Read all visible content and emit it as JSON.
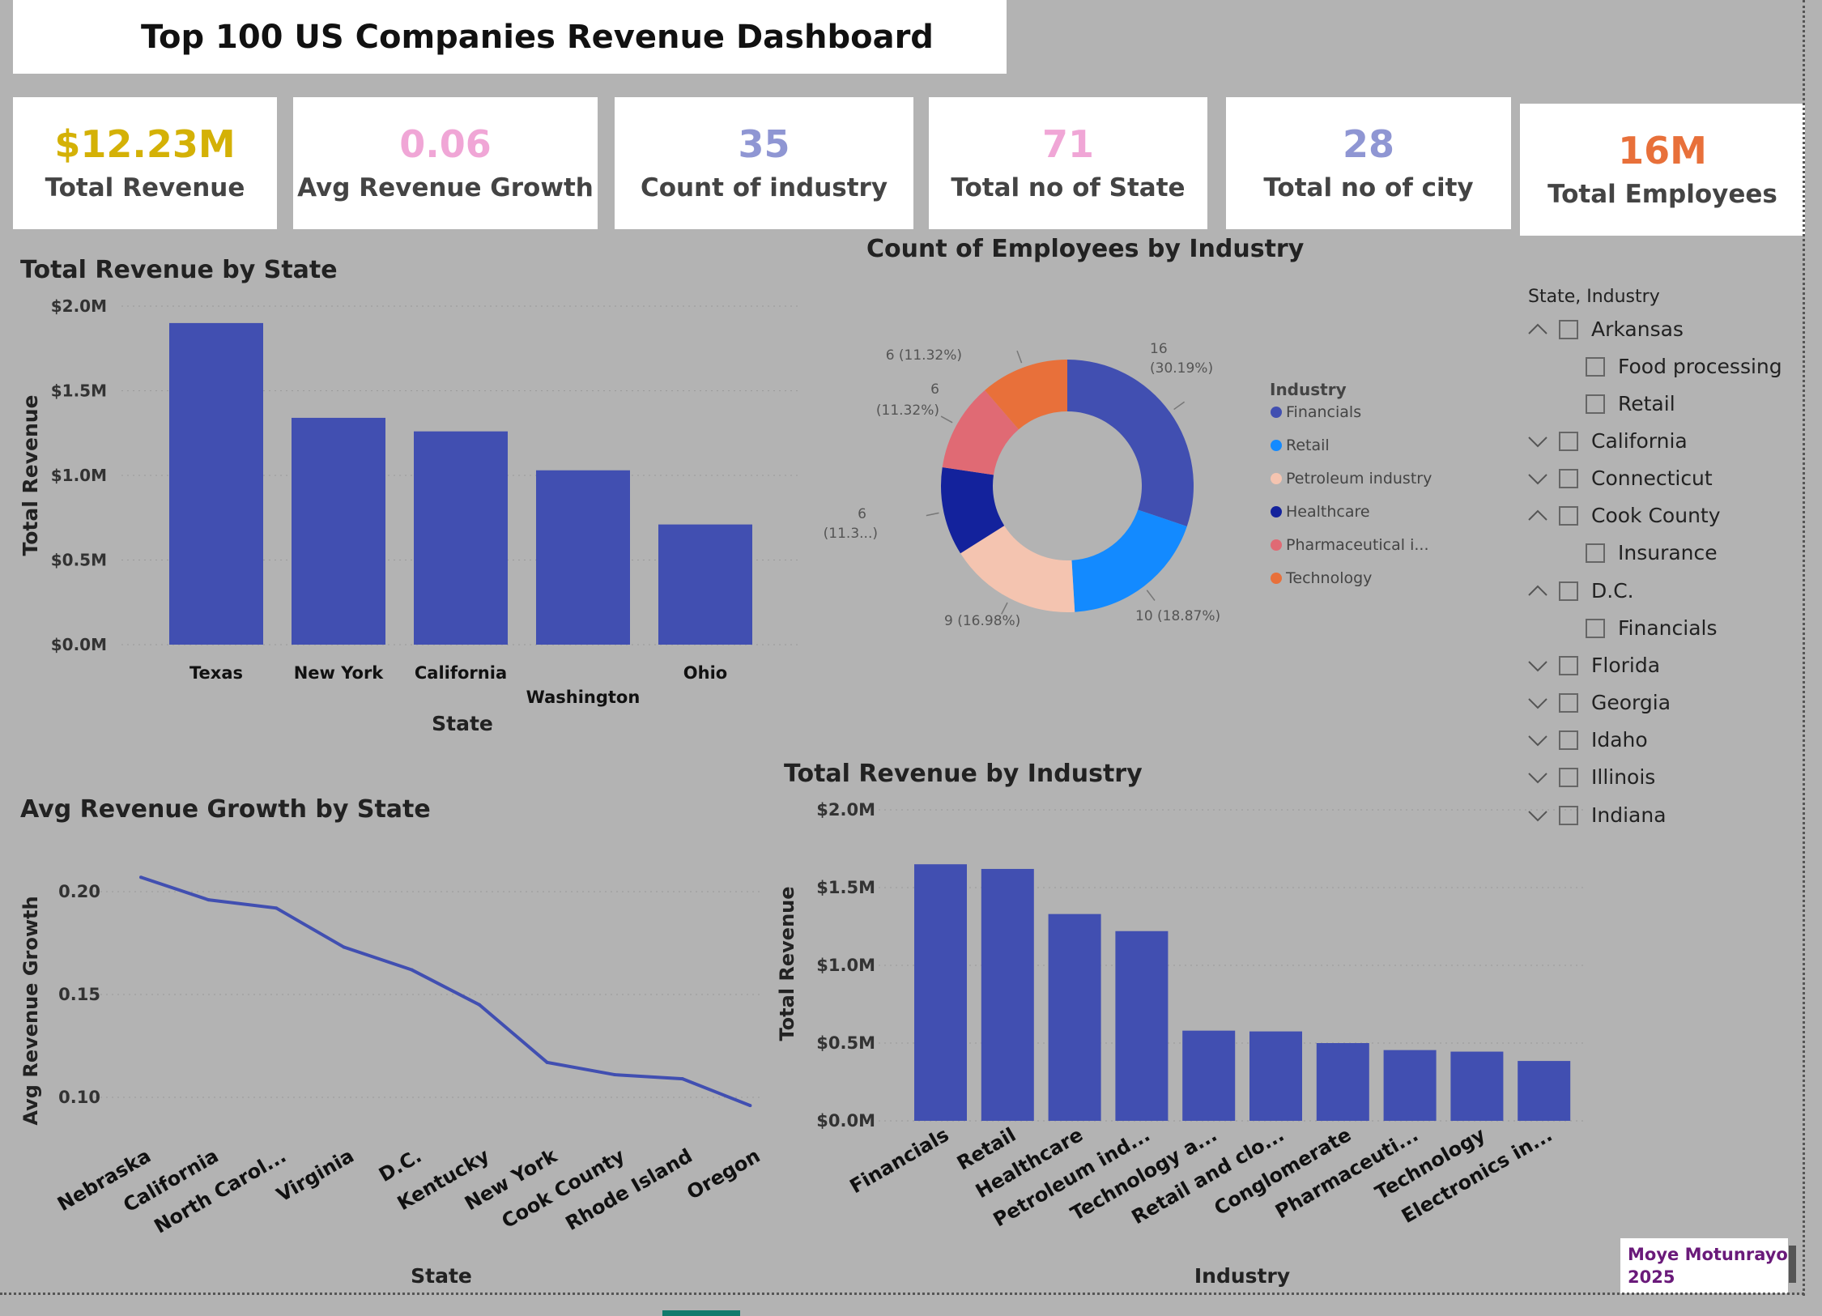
{
  "header": {
    "title": "Top 100 US Companies Revenue Dashboard"
  },
  "kpis": [
    {
      "value": "$12.23M",
      "label": "Total Revenue",
      "color": "#d4b106"
    },
    {
      "value": "0.06",
      "label": "Avg Revenue Growth",
      "color": "#f0a6d6"
    },
    {
      "value": "35",
      "label": "Count of industry",
      "color": "#8f96d3"
    },
    {
      "value": "71",
      "label": "Total no of State",
      "color": "#f0a6d6"
    },
    {
      "value": "28",
      "label": "Total no of city",
      "color": "#8f96d3"
    },
    {
      "value": "16M",
      "label": "Total Employees",
      "color": "#e8703a"
    }
  ],
  "chart_data": [
    {
      "type": "bar",
      "title": "Total Revenue by State",
      "xlabel": "State",
      "ylabel": "Total Revenue",
      "categories": [
        "Texas",
        "New York",
        "California",
        "Washington",
        "Ohio"
      ],
      "values": [
        1.9,
        1.34,
        1.26,
        1.03,
        0.71
      ],
      "ylim": [
        0,
        2.0
      ],
      "yticks": [
        "$0.0M",
        "$0.5M",
        "$1.0M",
        "$1.5M",
        "$2.0M"
      ],
      "color": "#414fb1",
      "grid": true
    },
    {
      "type": "pie",
      "title": "Count of Employees by Industry",
      "legend_title": "Industry",
      "legend": "right",
      "categories": [
        "Financials",
        "Retail",
        "Petroleum industry",
        "Healthcare",
        "Pharmaceutical i...",
        "Technology"
      ],
      "values": [
        16,
        10,
        9,
        6,
        6,
        6
      ],
      "data_labels": [
        "16 (30.19%)",
        "10 (18.87%)",
        "9 (16.98%)",
        "6 (11.3...)",
        "6 (11.32%)",
        "6 (11.32%)"
      ],
      "colors": [
        "#414fb1",
        "#138aff",
        "#f4c4b0",
        "#13229c",
        "#e06a74",
        "#e8703a"
      ]
    },
    {
      "type": "line",
      "title": "Avg Revenue Growth by State",
      "xlabel": "State",
      "ylabel": "Avg Revenue Growth",
      "categories": [
        "Nebraska",
        "California",
        "North Carol...",
        "Virginia",
        "D.C.",
        "Kentucky",
        "New York",
        "Cook County",
        "Rhode Island",
        "Oregon"
      ],
      "values": [
        0.207,
        0.196,
        0.192,
        0.173,
        0.162,
        0.145,
        0.117,
        0.111,
        0.109,
        0.096
      ],
      "ylim": [
        0.08,
        0.215
      ],
      "yticks": [
        "0.10",
        "0.15",
        "0.20"
      ],
      "color": "#414fb1",
      "grid": true
    },
    {
      "type": "bar",
      "title": "Total Revenue by Industry",
      "xlabel": "Industry",
      "ylabel": "Total Revenue",
      "categories": [
        "Financials",
        "Retail",
        "Healthcare",
        "Petroleum ind...",
        "Technology a...",
        "Retail and clo...",
        "Conglomerate",
        "Pharmaceuti...",
        "Technology",
        "Electronics in..."
      ],
      "values": [
        1.65,
        1.62,
        1.33,
        1.22,
        0.58,
        0.575,
        0.5,
        0.455,
        0.445,
        0.385
      ],
      "ylim": [
        0,
        2.0
      ],
      "yticks": [
        "$0.0M",
        "$0.5M",
        "$1.0M",
        "$1.5M",
        "$2.0M"
      ],
      "color": "#414fb1",
      "grid": true
    }
  ],
  "slicer": {
    "title": "State, Industry",
    "items": [
      {
        "label": "Arkansas",
        "level": 0,
        "chevron": "up"
      },
      {
        "label": "Food processing",
        "level": 1
      },
      {
        "label": "Retail",
        "level": 1
      },
      {
        "label": "California",
        "level": 0,
        "chevron": "down"
      },
      {
        "label": "Connecticut",
        "level": 0,
        "chevron": "down"
      },
      {
        "label": "Cook County",
        "level": 0,
        "chevron": "up"
      },
      {
        "label": "Insurance",
        "level": 1
      },
      {
        "label": "D.C.",
        "level": 0,
        "chevron": "up"
      },
      {
        "label": "Financials",
        "level": 1
      },
      {
        "label": "Florida",
        "level": 0,
        "chevron": "down"
      },
      {
        "label": "Georgia",
        "level": 0,
        "chevron": "down"
      },
      {
        "label": "Idaho",
        "level": 0,
        "chevron": "down"
      },
      {
        "label": "Illinois",
        "level": 0,
        "chevron": "down"
      },
      {
        "label": "Indiana",
        "level": 0,
        "chevron": "down"
      }
    ]
  },
  "credit": {
    "line1": "Moye Motunrayo",
    "line2": "2025"
  }
}
